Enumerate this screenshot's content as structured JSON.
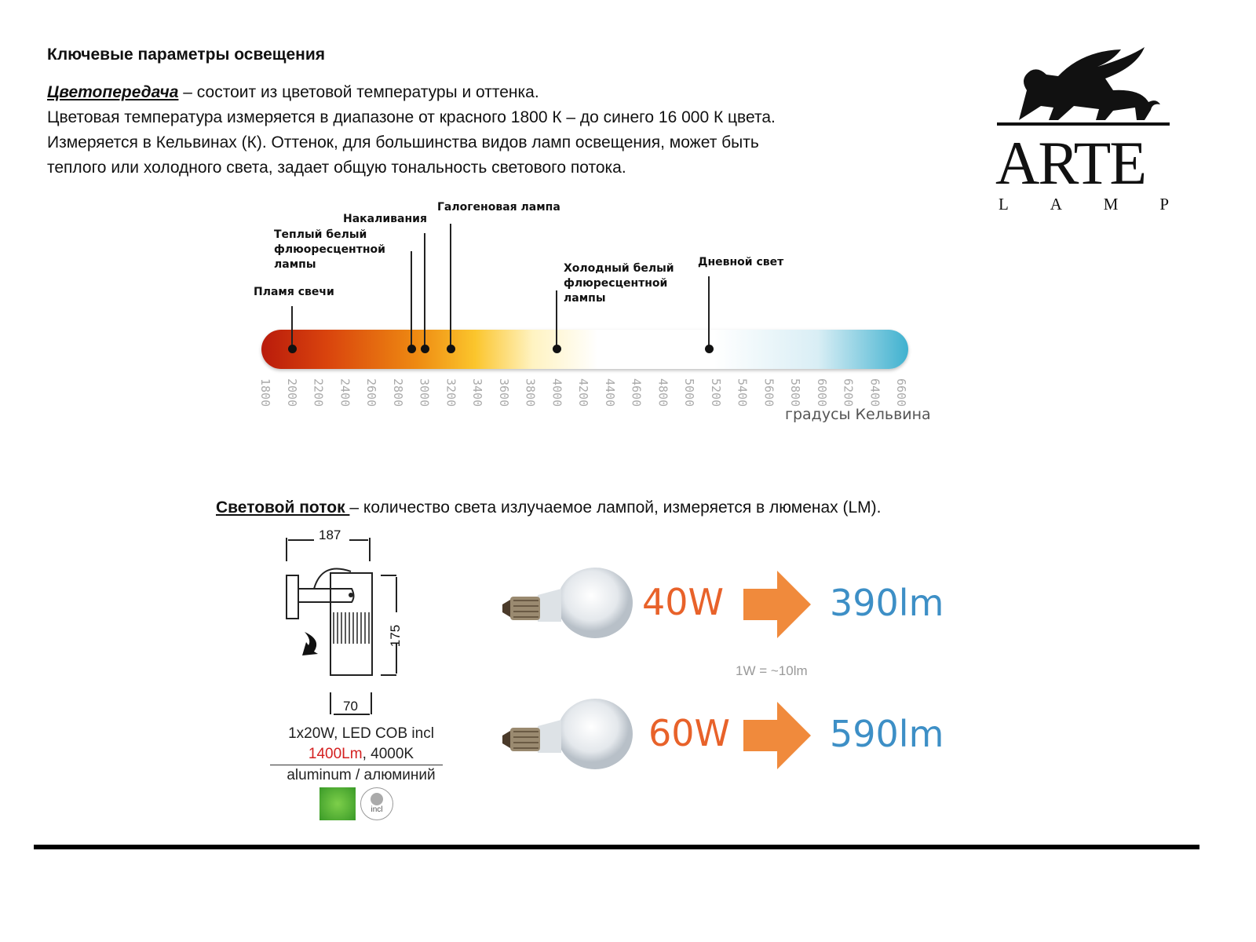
{
  "heading": "Ключевые параметры освещения",
  "color_rendering": {
    "term": "Цветопередача",
    "line1": " – состоит из цветовой температуры и оттенка.",
    "line2": "Цветовая температура измеряется в диапазоне от красного 1800 К – до синего 16 000 К цвета.",
    "line3": "Измеряется в Кельвинах (К). Оттенок, для большинства видов ламп освещения, может быть",
    "line4": "теплого или холодного света, задает общую тональность светового потока."
  },
  "chart_data": {
    "type": "scale",
    "xlabel": "градусы Кельвина",
    "xlim": [
      1800,
      6600
    ],
    "ticks": [
      "1800",
      "2000",
      "2200",
      "2400",
      "2600",
      "2800",
      "3000",
      "3200",
      "3400",
      "3600",
      "3800",
      "4000",
      "4200",
      "4400",
      "4600",
      "4800",
      "5000",
      "5200",
      "5400",
      "5600",
      "5800",
      "6000",
      "6200",
      "6400",
      "6600"
    ],
    "markers": [
      {
        "label": "Пламя свечи",
        "value": 2000
      },
      {
        "label": "Теплый белый флюоресцентной лампы",
        "value": 2900
      },
      {
        "label": "Накаливания",
        "value": 3000
      },
      {
        "label": "Галогеновая лампа",
        "value": 3200
      },
      {
        "label": "Холодный белый флюресцентной лампы",
        "value": 4000
      },
      {
        "label": "Дневной свет",
        "value": 5150
      }
    ]
  },
  "luminous_flux": {
    "term": "Световой поток ",
    "desc": "– количество света излучаемое лампой, измеряется в люменах (LM)."
  },
  "product": {
    "width_dim": "187",
    "height_dim": "175",
    "diameter_dim": "70",
    "spec1": "1x20W, LED COB incl",
    "lumens": "1400Lm",
    "spec2": ", 4000K",
    "material": "aluminum / алюминий",
    "swatch_color": "#4aa52e",
    "incl_label": "incl"
  },
  "comparison": {
    "rows": [
      {
        "watts": "40W",
        "lumens": "390lm"
      },
      {
        "watts": "60W",
        "lumens": "590lm"
      }
    ],
    "rule": "1W = ~10lm",
    "watt_color": "#e8622a",
    "arrow_color": "#f08a3c",
    "lumen_color": "#3d8fc6"
  },
  "logo": {
    "name": "ARTE",
    "sub": [
      "L",
      "A",
      "M",
      "P"
    ]
  }
}
